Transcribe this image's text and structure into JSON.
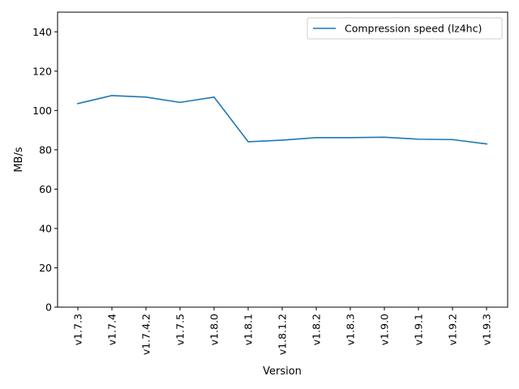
{
  "chart_data": {
    "type": "line",
    "title": "",
    "xlabel": "Version",
    "ylabel": "MB/s",
    "ylim": [
      0,
      150
    ],
    "yticks": [
      0,
      20,
      40,
      60,
      80,
      100,
      120,
      140
    ],
    "grid": false,
    "legend_position": "upper-right",
    "categories": [
      "v1.7.3",
      "v1.7.4",
      "v1.7.4.2",
      "v1.7.5",
      "v1.8.0",
      "v1.8.1",
      "v1.8.1.2",
      "v1.8.2",
      "v1.8.3",
      "v1.9.0",
      "v1.9.1",
      "v1.9.2",
      "v1.9.3"
    ],
    "series": [
      {
        "name": "Compression speed (lz4hc)",
        "color": "#1f77b4",
        "values": [
          103.5,
          107.6,
          106.8,
          104.1,
          106.8,
          84.1,
          84.9,
          86.2,
          86.2,
          86.4,
          85.4,
          85.2,
          83.0
        ]
      }
    ]
  }
}
